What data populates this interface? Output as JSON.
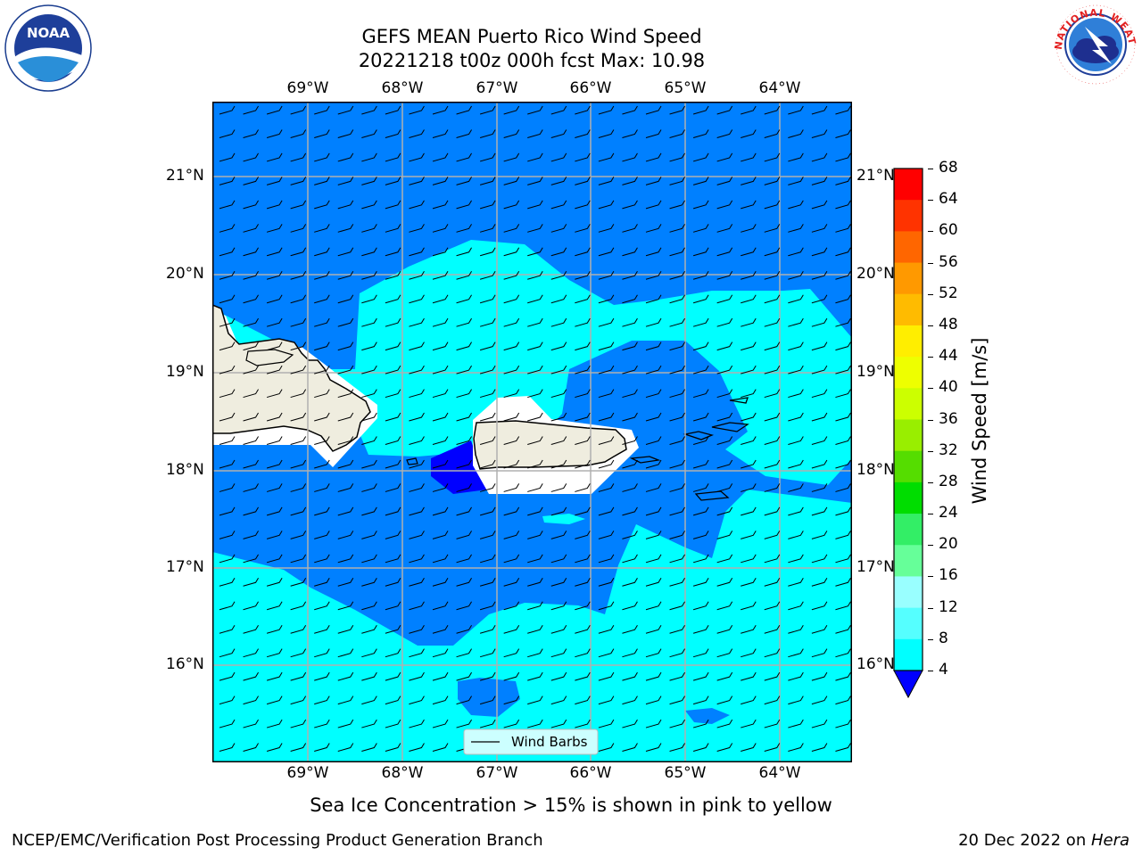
{
  "header": {
    "title_line1": "GEFS MEAN Puerto Rico Wind Speed",
    "title_line2": "20221218 t00z 000h fcst   Max: 10.98"
  },
  "logos": {
    "left": {
      "name": "noaa-logo",
      "text": "NOAA"
    },
    "right": {
      "name": "nws-logo",
      "text": "NATIONAL WEATHER SERVICE"
    }
  },
  "map": {
    "lon_labels": [
      "69°W",
      "68°W",
      "67°W",
      "66°W",
      "65°W",
      "64°W"
    ],
    "lat_labels": [
      "21°N",
      "20°N",
      "19°N",
      "18°N",
      "17°N",
      "16°N"
    ],
    "legend_label": "Wind Barbs",
    "ocean_color": "#00ffff",
    "low_wind_color": "#0080ff",
    "calm_color": "#0000ff",
    "land_color": "#efeddf"
  },
  "colorbar": {
    "label": "Wind Speed [m/s]",
    "ticks": [
      "68",
      "64",
      "60",
      "56",
      "52",
      "48",
      "44",
      "40",
      "36",
      "32",
      "28",
      "24",
      "20",
      "16",
      "12",
      "8",
      "4"
    ],
    "colors": [
      "#ff0000",
      "#ff3300",
      "#ff6600",
      "#ff9900",
      "#ffbb00",
      "#ffee00",
      "#eeff00",
      "#ccff00",
      "#99ee00",
      "#55dd00",
      "#00dd00",
      "#33ee66",
      "#66ff99",
      "#99ffff",
      "#55ffff",
      "#00ffff",
      "#0080ff"
    ],
    "extend_color": "#0000ff"
  },
  "footer": {
    "note": "Sea Ice Concentration > 15% is shown in pink to yellow",
    "left": "NCEP/EMC/Verification Post Processing Product Generation Branch",
    "right_date": "20 Dec 2022 on ",
    "right_host": "Hera"
  }
}
